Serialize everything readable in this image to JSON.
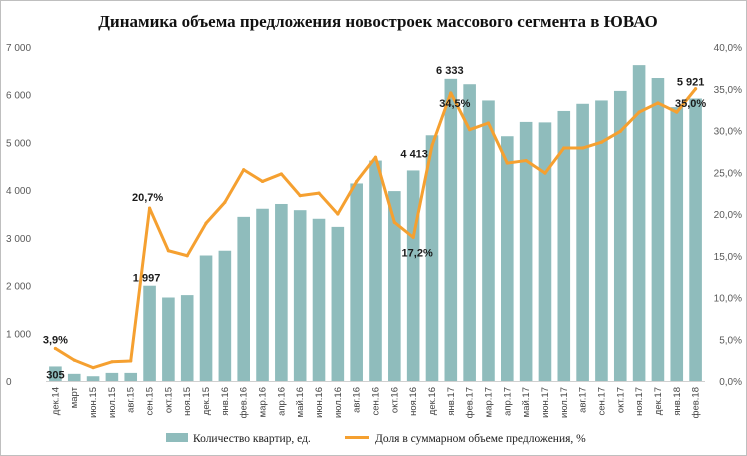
{
  "chart_data": {
    "type": "bar",
    "title": "Динамика объема предложения новостроек массового сегмента в ЮВАО",
    "categories": [
      "дек.14",
      "март",
      "июн.15",
      "июл.15",
      "авг.15",
      "сен.15",
      "окт.15",
      "ноя.15",
      "дек.15",
      "янв.16",
      "фев.16",
      "мар.16",
      "апр.16",
      "май.16",
      "июн.16",
      "июл.16",
      "авг.16",
      "сен.16",
      "окт.16",
      "ноя.16",
      "дек.16",
      "янв.17",
      "фев.17",
      "мар.17",
      "апр.17",
      "май.17",
      "июн.17",
      "июл.17",
      "авг.17",
      "сен.17",
      "окт.17",
      "ноя.17",
      "дек.17",
      "янв.18",
      "фев.18"
    ],
    "series": [
      {
        "name": "Количество квартир, ед.",
        "type": "bar",
        "axis": "left",
        "color": "#8fbcbc",
        "values": [
          305,
          150,
          100,
          170,
          170,
          1997,
          1750,
          1800,
          2630,
          2730,
          3440,
          3610,
          3710,
          3580,
          3400,
          3230,
          4140,
          4620,
          3980,
          4413,
          5150,
          6333,
          6220,
          5880,
          5130,
          5430,
          5420,
          5660,
          5810,
          5880,
          6080,
          6620,
          6350,
          5740,
          5921
        ]
      },
      {
        "name": "Доля в суммарном объеме предложения, %",
        "type": "line",
        "axis": "right",
        "color": "#f5a030",
        "values": [
          3.9,
          2.5,
          1.6,
          2.3,
          2.4,
          20.7,
          15.6,
          15.0,
          18.9,
          21.4,
          25.3,
          23.9,
          24.8,
          22.2,
          22.5,
          20.0,
          23.9,
          26.8,
          19.0,
          17.2,
          28.2,
          34.5,
          30.1,
          30.9,
          26.1,
          26.4,
          24.9,
          27.9,
          27.9,
          28.6,
          29.9,
          32.2,
          33.3,
          32.2,
          35.0
        ]
      }
    ],
    "data_labels": [
      {
        "series": 0,
        "index": 0,
        "text": "305"
      },
      {
        "series": 0,
        "index": 5,
        "text": "1 997"
      },
      {
        "series": 0,
        "index": 19,
        "text": "4 413"
      },
      {
        "series": 0,
        "index": 21,
        "text": "6 333"
      },
      {
        "series": 0,
        "index": 34,
        "text": "5 921"
      },
      {
        "series": 1,
        "index": 0,
        "text": "3,9%"
      },
      {
        "series": 1,
        "index": 5,
        "text": "20,7%"
      },
      {
        "series": 1,
        "index": 19,
        "text": "17,2%"
      },
      {
        "series": 1,
        "index": 21,
        "text": "34,5%"
      },
      {
        "series": 1,
        "index": 34,
        "text": "35,0%"
      }
    ],
    "y_left": {
      "min": 0,
      "max": 7000,
      "step": 1000,
      "tick_labels": [
        "0",
        "1 000",
        "2 000",
        "3 000",
        "4 000",
        "5 000",
        "6 000",
        "7 000"
      ]
    },
    "y_right": {
      "min": 0,
      "max": 40,
      "step": 5,
      "tick_labels": [
        "0,0%",
        "5,0%",
        "10,0%",
        "15,0%",
        "20,0%",
        "25,0%",
        "30,0%",
        "35,0%",
        "40,0%"
      ]
    },
    "grid": false,
    "legend_position": "bottom"
  }
}
